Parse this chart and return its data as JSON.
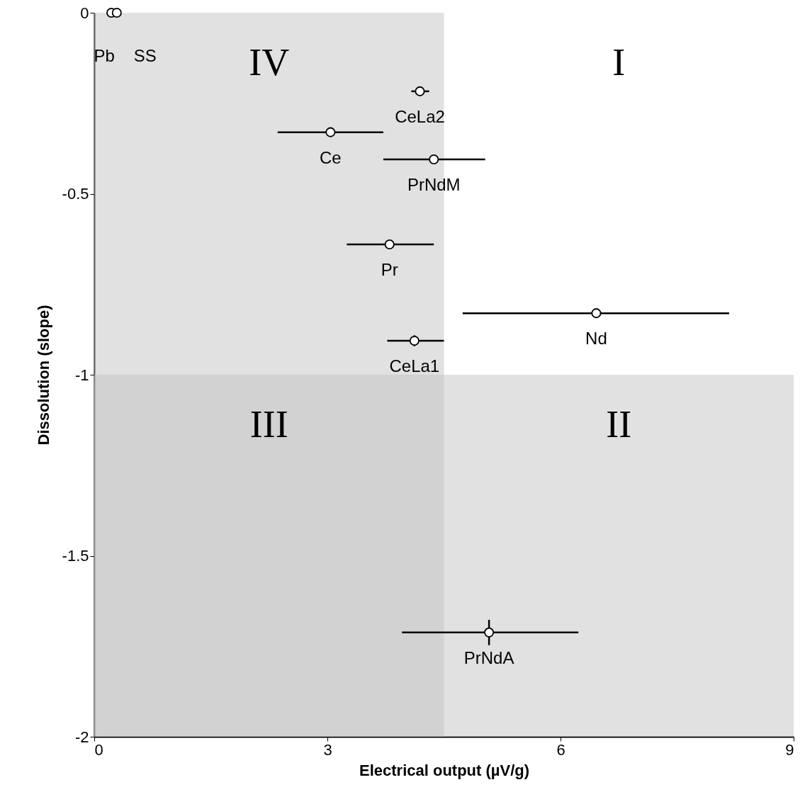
{
  "chart_data": {
    "type": "scatter",
    "xlabel": "Electrical output (µV/g)",
    "ylabel": "Dissolution (slope)",
    "xlim": [
      0,
      9
    ],
    "xticks": [
      0,
      3,
      6,
      9
    ],
    "ylim": [
      -2,
      0
    ],
    "yticks": [
      0,
      -0.5,
      -1,
      -1.5,
      -2
    ],
    "grid": false,
    "marker": "circle",
    "series": [
      {
        "color": "#000000",
        "x": [
          0.22,
          0.29,
          4.19,
          3.04,
          4.37,
          3.8,
          6.46,
          4.12,
          5.08
        ],
        "values": [
          0,
          0,
          -0.217,
          -0.33,
          -0.405,
          -0.64,
          -0.83,
          -0.906,
          -1.712
        ],
        "xerrors": [
          null,
          null,
          [
            4.08,
            4.31
          ],
          [
            2.36,
            3.72
          ],
          [
            3.72,
            5.03
          ],
          [
            3.25,
            4.37
          ],
          [
            4.74,
            8.17
          ],
          [
            3.77,
            4.5
          ],
          [
            3.96,
            6.23
          ]
        ],
        "errors": [
          null,
          null,
          null,
          null,
          null,
          null,
          null,
          0.015,
          0.035
        ]
      }
    ],
    "bands": [
      {
        "axis": "x",
        "from": 0,
        "to": 4.5,
        "color": "#c4c4c4"
      },
      {
        "axis": "y",
        "from": -2,
        "to": -1,
        "color": "#c4c4c4"
      }
    ],
    "annotations": [
      {
        "text": "Pb",
        "x": 0.22,
        "y": 0
      },
      {
        "text": "SS",
        "x": 0.29,
        "y": 0
      },
      {
        "text": "CeLa2",
        "x": 4.19,
        "y": -0.217
      },
      {
        "text": "Ce",
        "x": 3.04,
        "y": -0.33
      },
      {
        "text": "PrNdM",
        "x": 4.37,
        "y": -0.405
      },
      {
        "text": "Pr",
        "x": 3.8,
        "y": -0.64
      },
      {
        "text": "Nd",
        "x": 6.46,
        "y": -0.83
      },
      {
        "text": "CeLa1",
        "x": 4.12,
        "y": -0.906
      },
      {
        "text": "PrNdA",
        "x": 5.08,
        "y": -1.712
      },
      "IV",
      "I",
      "III",
      "II"
    ]
  }
}
